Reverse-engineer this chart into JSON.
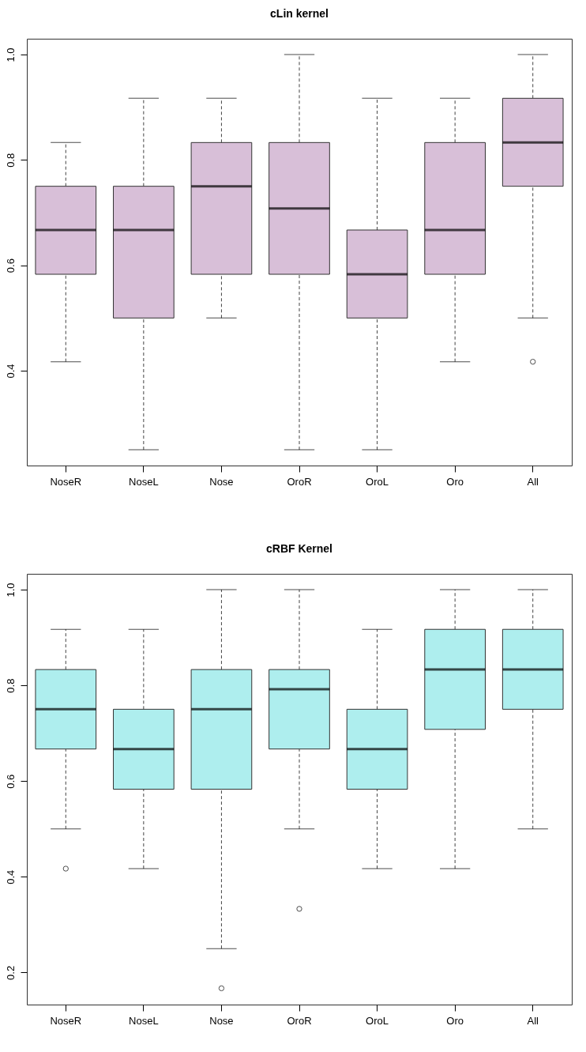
{
  "chart_data": [
    {
      "type": "box",
      "title": "cLin kernel",
      "categories": [
        "NoseR",
        "NoseL",
        "Nose",
        "OroR",
        "OroL",
        "Oro",
        "All"
      ],
      "color": "#d8bfd8",
      "ylim": [
        0.22,
        1.03
      ],
      "yticks": [
        {
          "value": 0.4,
          "label": "0.4"
        },
        {
          "value": 0.6,
          "label": "0.6"
        },
        {
          "value": 0.8,
          "label": "0.8"
        },
        {
          "value": 1.0,
          "label": "1.0"
        }
      ],
      "marker": "circle",
      "line_style": "dashed",
      "boxes": [
        {
          "low": 0.417,
          "q1": 0.583,
          "median": 0.667,
          "q3": 0.75,
          "high": 0.833
        },
        {
          "low": 0.25,
          "q1": 0.5,
          "median": 0.667,
          "q3": 0.75,
          "high": 0.917
        },
        {
          "low": 0.5,
          "q1": 0.583,
          "median": 0.75,
          "q3": 0.833,
          "high": 0.917
        },
        {
          "low": 0.25,
          "q1": 0.583,
          "median": 0.708,
          "q3": 0.833,
          "high": 1.0
        },
        {
          "low": 0.25,
          "q1": 0.5,
          "median": 0.583,
          "q3": 0.667,
          "high": 0.917
        },
        {
          "low": 0.417,
          "q1": 0.583,
          "median": 0.667,
          "q3": 0.833,
          "high": 0.917
        },
        {
          "low": 0.5,
          "q1": 0.75,
          "median": 0.833,
          "q3": 0.917,
          "high": 1.0,
          "outliers": [
            0.417
          ]
        }
      ]
    },
    {
      "type": "box",
      "title": "cRBF Kernel",
      "categories": [
        "NoseR",
        "NoseL",
        "Nose",
        "OroR",
        "OroL",
        "Oro",
        "All"
      ],
      "color": "#aeeeee",
      "ylim": [
        0.133,
        1.033
      ],
      "yticks": [
        {
          "value": 0.2,
          "label": "0.2"
        },
        {
          "value": 0.4,
          "label": "0.4"
        },
        {
          "value": 0.6,
          "label": "0.6"
        },
        {
          "value": 0.8,
          "label": "0.8"
        },
        {
          "value": 1.0,
          "label": "1.0"
        }
      ],
      "marker": "circle",
      "line_style": "dashed",
      "boxes": [
        {
          "low": 0.5,
          "q1": 0.667,
          "median": 0.75,
          "q3": 0.833,
          "high": 0.917,
          "outliers": [
            0.417
          ]
        },
        {
          "low": 0.417,
          "q1": 0.583,
          "median": 0.667,
          "q3": 0.75,
          "high": 0.917
        },
        {
          "low": 0.25,
          "q1": 0.583,
          "median": 0.75,
          "q3": 0.833,
          "high": 1.0,
          "outliers": [
            0.167
          ]
        },
        {
          "low": 0.5,
          "q1": 0.667,
          "median": 0.792,
          "q3": 0.833,
          "high": 1.0,
          "outliers": [
            0.333
          ]
        },
        {
          "low": 0.417,
          "q1": 0.583,
          "median": 0.667,
          "q3": 0.75,
          "high": 0.917
        },
        {
          "low": 0.417,
          "q1": 0.708,
          "median": 0.833,
          "q3": 0.917,
          "high": 1.0
        },
        {
          "low": 0.5,
          "q1": 0.75,
          "median": 0.833,
          "q3": 0.917,
          "high": 1.0
        }
      ]
    }
  ]
}
